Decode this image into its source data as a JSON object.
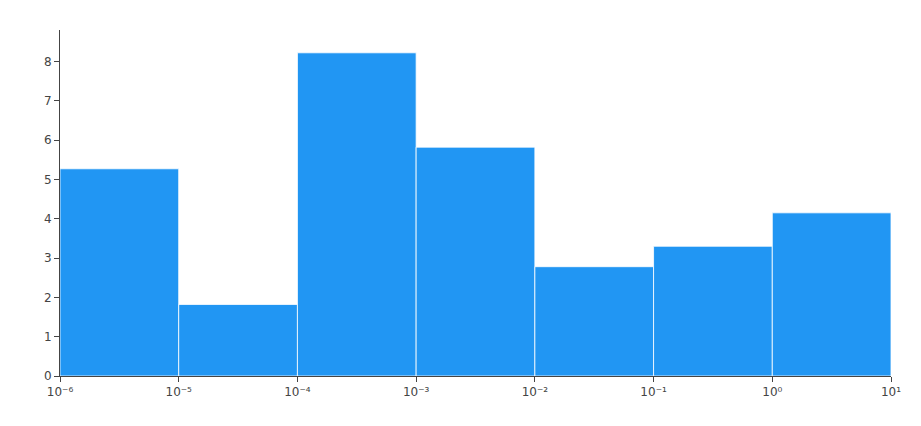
{
  "chart_data": {
    "type": "histogram",
    "bins": [
      1e-06,
      1e-05,
      0.0001,
      0.001,
      0.01,
      0.1,
      1.0,
      10.0
    ],
    "values": [
      5.27,
      1.82,
      8.22,
      5.82,
      2.78,
      3.3,
      4.15
    ],
    "color": "#2196F3",
    "log": "x",
    "xlim": [
      1e-06,
      10.0
    ],
    "xticks": [
      {
        "value": 1e-06,
        "label": "10⁻⁶"
      },
      {
        "value": 1e-05,
        "label": "10⁻⁵"
      },
      {
        "value": 0.0001,
        "label": "10⁻⁴"
      },
      {
        "value": 0.001,
        "label": "10⁻³"
      },
      {
        "value": 0.01,
        "label": "10⁻²"
      },
      {
        "value": 0.1,
        "label": "10⁻¹"
      },
      {
        "value": 1.0,
        "label": "10⁰"
      },
      {
        "value": 10.0,
        "label": "10¹"
      }
    ],
    "ylim": [
      0,
      8.8
    ],
    "yticks": [
      0,
      1,
      2,
      3,
      4,
      5,
      6,
      7,
      8
    ],
    "grid": false
  }
}
